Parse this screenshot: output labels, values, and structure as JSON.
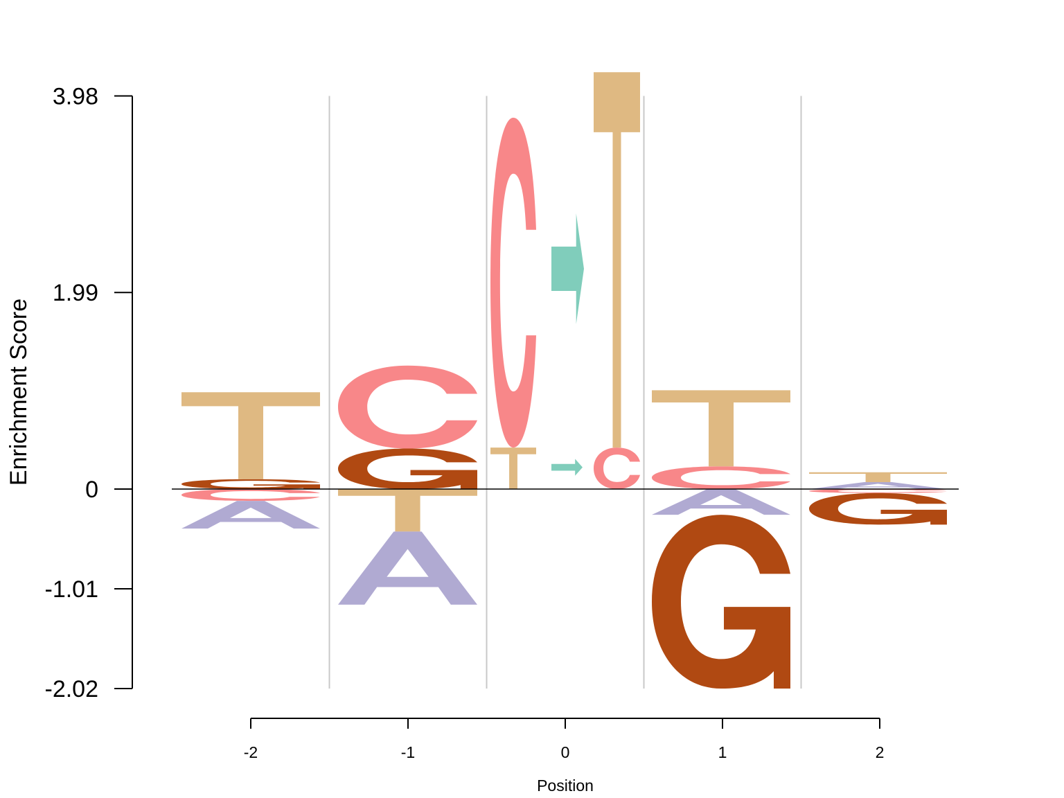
{
  "chart_data": {
    "type": "sequence-logo",
    "ylabel": "Enrichment Score",
    "xlabel": "Position",
    "yticks": [
      "3.98",
      "1.99",
      "0",
      "-1.01",
      "-2.02"
    ],
    "ylim": [
      -2.02,
      3.98
    ],
    "positions": [
      -2,
      -1,
      0,
      1,
      2
    ],
    "colors": {
      "A": "#b0aad2",
      "C": "#f88789",
      "G": "#b04912",
      "T": "#dfb982",
      "arrow": "#80cdbb"
    },
    "columns": [
      {
        "position": -2,
        "above": [
          {
            "letter": "G",
            "height": 0.1
          },
          {
            "letter": "T",
            "height": 0.88
          }
        ],
        "below": [
          {
            "letter": "C",
            "height": 0.12
          },
          {
            "letter": "A",
            "height": 0.28
          }
        ]
      },
      {
        "position": -1,
        "above": [
          {
            "letter": "G",
            "height": 0.41
          },
          {
            "letter": "C",
            "height": 0.84
          }
        ],
        "below": [
          {
            "letter": "T",
            "height": 0.43
          },
          {
            "letter": "A",
            "height": 0.74
          }
        ]
      },
      {
        "position": 0,
        "above": [
          {
            "letter": "T",
            "height": 0.42
          },
          {
            "letter": "C",
            "height": 3.34
          }
        ]
      },
      {
        "position": 0,
        "type": "arrow",
        "above": [
          {
            "letter": "→",
            "height": 0.17,
            "pos": 0
          },
          {
            "letter": "→",
            "height": 1.12,
            "pos": 2.23
          }
        ]
      },
      {
        "position": 0,
        "above": [
          {
            "letter": "C",
            "height": 0.42
          },
          {
            "letter": "T",
            "height": 3.8
          }
        ]
      },
      {
        "position": 1,
        "above": [
          {
            "letter": "C",
            "height": 0.23
          },
          {
            "letter": "T",
            "height": 0.77
          }
        ],
        "below": [
          {
            "letter": "A",
            "height": 0.26
          },
          {
            "letter": "G",
            "height": 1.76
          }
        ]
      },
      {
        "position": 2,
        "above": [
          {
            "letter": "A",
            "height": 0.07
          },
          {
            "letter": "T",
            "height": 0.1
          }
        ],
        "below": [
          {
            "letter": "C",
            "height": 0.04
          },
          {
            "letter": "G",
            "height": 0.32
          }
        ]
      }
    ]
  }
}
